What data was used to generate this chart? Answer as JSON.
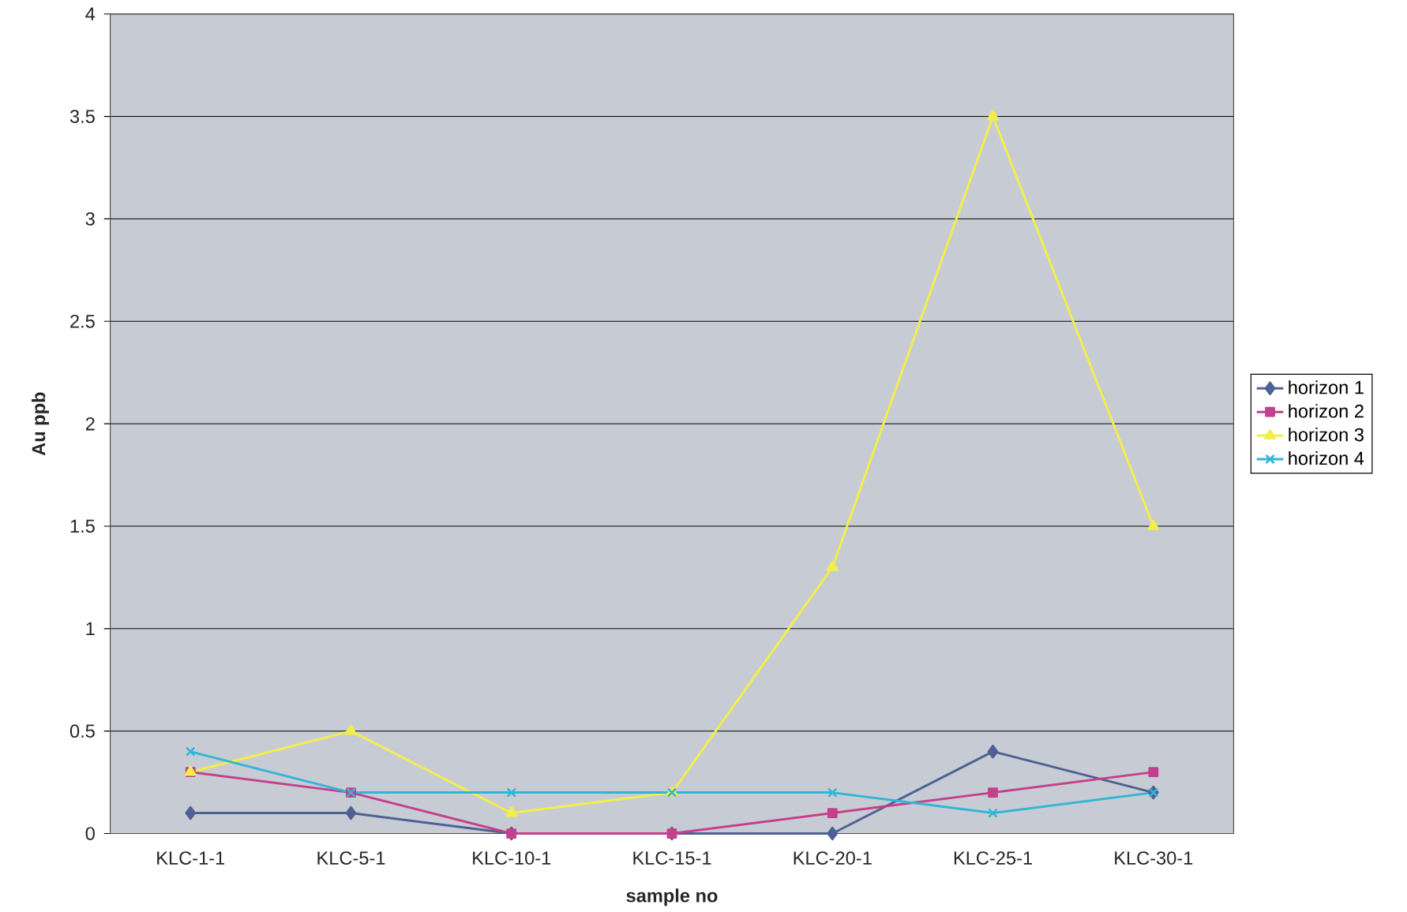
{
  "chart_data": {
    "type": "line",
    "xlabel": "sample no",
    "ylabel": "Au ppb",
    "categories": [
      "KLC-1-1",
      "KLC-5-1",
      "KLC-10-1",
      "KLC-15-1",
      "KLC-20-1",
      "KLC-25-1",
      "KLC-30-1"
    ],
    "series": [
      {
        "name": "horizon 1",
        "color": "#4f6194",
        "marker": "diamond",
        "values": [
          0.1,
          0.1,
          0,
          0,
          0,
          0.4,
          0.2
        ]
      },
      {
        "name": "horizon 2",
        "color": "#c4408c",
        "marker": "square",
        "values": [
          0.3,
          0.2,
          0,
          0,
          0.1,
          0.2,
          0.3
        ]
      },
      {
        "name": "horizon 3",
        "color": "#f2ee4a",
        "marker": "triangle",
        "values": [
          0.3,
          0.5,
          0.1,
          0.2,
          1.3,
          3.5,
          1.5
        ]
      },
      {
        "name": "horizon 4",
        "color": "#33b5d6",
        "marker": "cross",
        "values": [
          0.4,
          0.2,
          0.2,
          0.2,
          0.2,
          0.1,
          0.2
        ]
      }
    ],
    "ylim": [
      0,
      4
    ],
    "yticks": [
      0,
      0.5,
      1,
      1.5,
      2,
      2.5,
      3,
      3.5,
      4
    ],
    "grid": "y",
    "legend": "right",
    "line_style": "solid"
  }
}
